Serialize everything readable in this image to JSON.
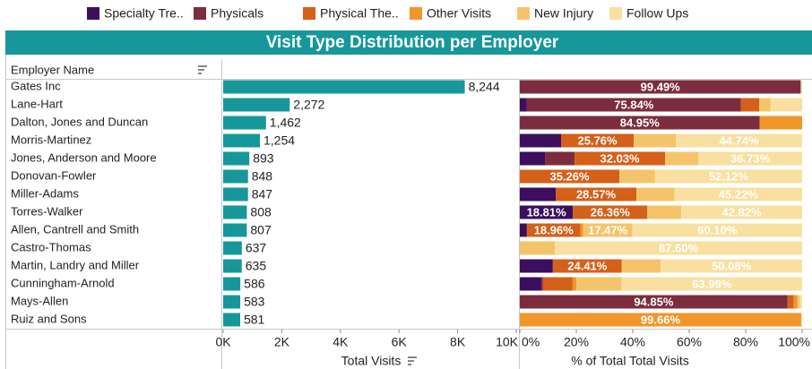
{
  "chart_data": [
    {
      "type": "bar",
      "orientation": "horizontal",
      "title": "Visit Type Distribution per Employer",
      "row_header": "Employer Name",
      "categories": [
        "Gates Inc",
        "Lane-Hart",
        "Dalton, Jones and Duncan",
        "Morris-Martinez",
        "Jones, Anderson and Moore",
        "Donovan-Fowler",
        "Miller-Adams",
        "Torres-Walker",
        "Allen, Cantrell and Smith",
        "Castro-Thomas",
        "Martin, Landry and Miller",
        "Cunningham-Arnold",
        "Mays-Allen",
        "Ruiz and Sons"
      ],
      "values": [
        8244,
        2272,
        1462,
        1254,
        893,
        848,
        847,
        808,
        807,
        637,
        635,
        586,
        583,
        581
      ],
      "value_labels": [
        "8,244",
        "2,272",
        "1,462",
        "1,254",
        "893",
        "848",
        "847",
        "808",
        "807",
        "637",
        "635",
        "586",
        "583",
        "581"
      ],
      "color": "#17979a",
      "xlim": [
        0,
        10000
      ],
      "xticks": [
        {
          "value": 0,
          "label": "0K"
        },
        {
          "value": 2000,
          "label": "2K"
        },
        {
          "value": 4000,
          "label": "4K"
        },
        {
          "value": 6000,
          "label": "6K"
        },
        {
          "value": 8000,
          "label": "8K"
        },
        {
          "value": 10000,
          "label": "10K"
        }
      ],
      "x_label": "Total Visits"
    },
    {
      "type": "stacked_bar",
      "orientation": "horizontal",
      "series": [
        {
          "name": "Specialty Tre..",
          "color": "#3b0f5e",
          "values": [
            0,
            2.5,
            0,
            14.6,
            8.9,
            0,
            12.7,
            18.81,
            2.5,
            0,
            11.7,
            7.6,
            0,
            0
          ],
          "value_labels": [
            null,
            null,
            null,
            null,
            null,
            null,
            null,
            "18.81%",
            null,
            null,
            null,
            null,
            null,
            null
          ]
        },
        {
          "name": "Physicals",
          "color": "#7b2d3e",
          "values": [
            99.49,
            75.84,
            84.95,
            0,
            10.5,
            0,
            0,
            0,
            0,
            0,
            0,
            0.6,
            94.85,
            0
          ],
          "value_labels": [
            "99.49%",
            "75.84%",
            "84.95%",
            null,
            null,
            null,
            null,
            null,
            null,
            null,
            null,
            null,
            "94.85%",
            null
          ]
        },
        {
          "name": "Physical The..",
          "color": "#d4601a",
          "values": [
            0,
            6.5,
            0,
            25.76,
            32.03,
            35.26,
            28.57,
            26.36,
            18.96,
            0,
            24.41,
            10.5,
            2.2,
            0
          ],
          "value_labels": [
            null,
            null,
            null,
            "25.76%",
            "32.03%",
            "35.26%",
            "28.57%",
            "26.36%",
            "18.96%",
            null,
            "24.41%",
            null,
            null,
            null
          ]
        },
        {
          "name": "Other Visits",
          "color": "#f0962a",
          "values": [
            0,
            0,
            15.05,
            0,
            0,
            0,
            0,
            0,
            0.97,
            0,
            0,
            1.3,
            1.3,
            99.66
          ],
          "value_labels": [
            null,
            null,
            null,
            null,
            null,
            null,
            null,
            null,
            null,
            null,
            null,
            null,
            null,
            "99.66%"
          ]
        },
        {
          "name": "New Injury",
          "color": "#f5c46a",
          "values": [
            0,
            4,
            0,
            14.9,
            11.84,
            12.62,
            13.51,
            12.01,
            17.47,
            12.4,
            13.81,
            16.01,
            0.8,
            0
          ],
          "value_labels": [
            null,
            null,
            null,
            null,
            null,
            null,
            null,
            null,
            "17.47%",
            null,
            null,
            null,
            null,
            null
          ]
        },
        {
          "name": "Follow Ups",
          "color": "#f9e0a0",
          "values": [
            0.51,
            11.16,
            0,
            44.74,
            36.73,
            52.12,
            45.22,
            42.82,
            60.1,
            87.6,
            50.08,
            63.99,
            0.85,
            0.34
          ],
          "value_labels": [
            null,
            null,
            null,
            "44.74%",
            "36.73%",
            "52.12%",
            "45.22%",
            "42.82%",
            "60.10%",
            "87.60%",
            "50.08%",
            "63.99%",
            null,
            null
          ]
        }
      ],
      "xlim": [
        0,
        100
      ],
      "xticks": [
        {
          "value": 0,
          "label": "0%"
        },
        {
          "value": 20,
          "label": "20%"
        },
        {
          "value": 40,
          "label": "40%"
        },
        {
          "value": 60,
          "label": "60%"
        },
        {
          "value": 80,
          "label": "80%"
        },
        {
          "value": 100,
          "label": "100%"
        }
      ],
      "x_label": "% of Total Total Visits"
    }
  ]
}
